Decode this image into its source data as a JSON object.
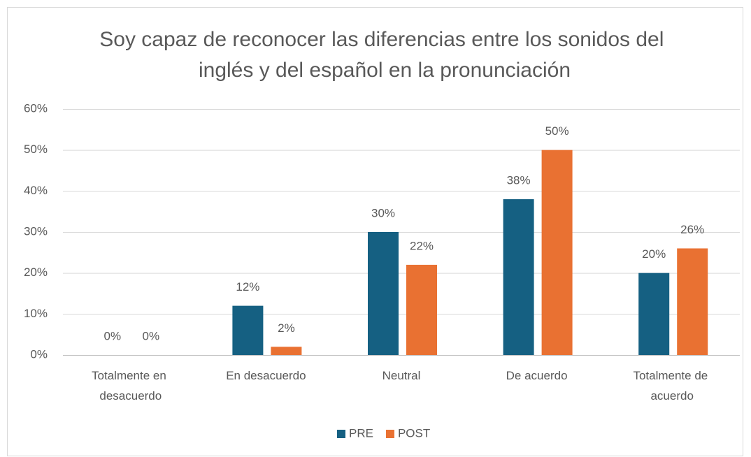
{
  "chart_data": {
    "type": "bar",
    "title": "Soy capaz de reconocer las diferencias entre los sonidos del inglés y del español en la pronunciación",
    "categories": [
      "Totalmente en desacuerdo",
      "En desacuerdo",
      "Neutral",
      "De acuerdo",
      "Totalmente de acuerdo"
    ],
    "series": [
      {
        "name": "PRE",
        "color": "#156082",
        "values": [
          0,
          12,
          30,
          38,
          20
        ],
        "value_labels": [
          "0%",
          "12%",
          "30%",
          "38%",
          "20%"
        ]
      },
      {
        "name": "POST",
        "color": "#e97132",
        "values": [
          0,
          2,
          22,
          50,
          26
        ],
        "value_labels": [
          "0%",
          "2%",
          "22%",
          "50%",
          "26%"
        ]
      }
    ],
    "ylim": [
      0,
      60
    ],
    "yticks": [
      {
        "value": 0,
        "label": "0%"
      },
      {
        "value": 10,
        "label": "10%"
      },
      {
        "value": 20,
        "label": "20%"
      },
      {
        "value": 30,
        "label": "30%"
      },
      {
        "value": 40,
        "label": "40%"
      },
      {
        "value": 50,
        "label": "50%"
      },
      {
        "value": 60,
        "label": "60%"
      }
    ],
    "grid": true,
    "legend": "bottom"
  }
}
